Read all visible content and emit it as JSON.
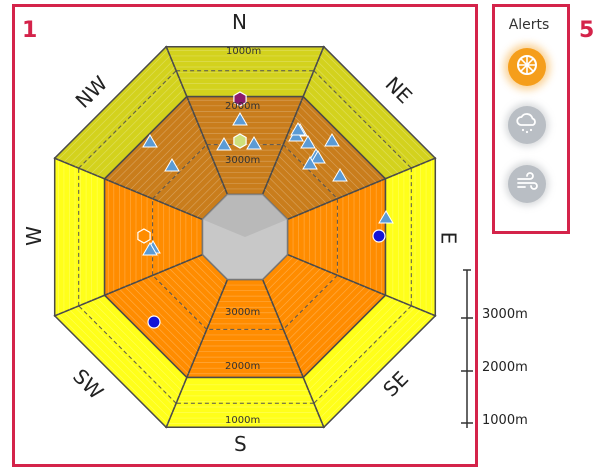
{
  "panels": {
    "rose_number": "1",
    "alerts_number": "5"
  },
  "compass": {
    "n": "N",
    "ne": "NE",
    "e": "E",
    "se": "SE",
    "s": "S",
    "sw": "SW",
    "w": "W",
    "nw": "NW"
  },
  "elevation_rings": {
    "n": [
      "1000m",
      "2000m",
      "3000m"
    ],
    "s": [
      "3000m",
      "2000m",
      "1000m"
    ]
  },
  "alerts": {
    "title": "Alerts",
    "items": [
      {
        "icon": "sun-icon",
        "state": "active",
        "color": "#f59e1b"
      },
      {
        "icon": "cloud-rain-icon",
        "state": "inactive",
        "color": "#b9bec4"
      },
      {
        "icon": "wind-icon",
        "state": "inactive",
        "color": "#b9bec4"
      }
    ]
  },
  "scale": {
    "labels": [
      "3000m",
      "2000m",
      "1000m"
    ]
  },
  "colors": {
    "frame": "#d4234a",
    "low_band": "#ffff1a",
    "low_band_north": "#d3d21d",
    "mid_band": "#ff8c00",
    "mid_band_north": "#c97d1c",
    "summit": "#c8c8c8",
    "marker_triangle": "#5b9bd5",
    "marker_dot": "#1414d6",
    "marker_hex_top": "#8b1a6b",
    "marker_hex_green": "#cfe07a",
    "marker_hex_orange": "#ff8c00"
  },
  "markers": {
    "triangles": 17,
    "dots": 2,
    "hexagons": 3
  }
}
